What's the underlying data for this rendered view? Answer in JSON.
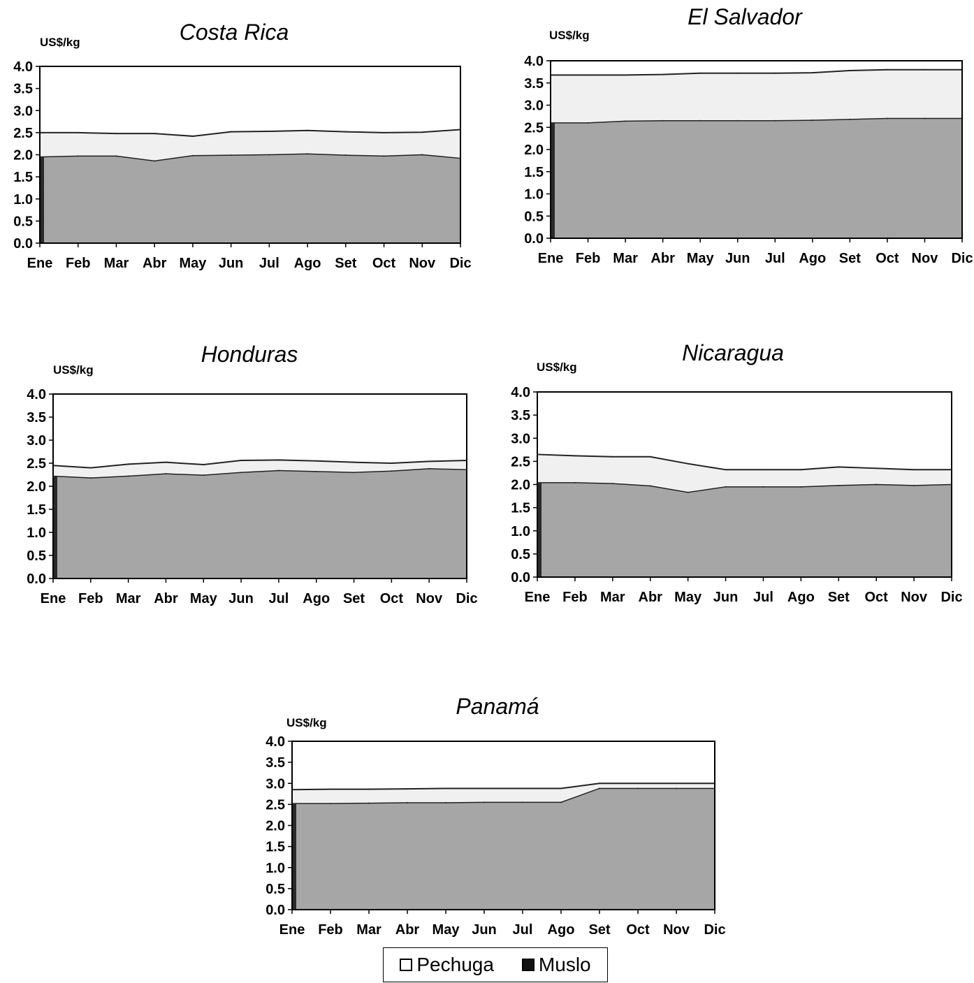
{
  "chart_data": [
    {
      "type": "area",
      "title": "Costa Rica",
      "ylabel": "US$/kg",
      "categories": [
        "Ene",
        "Feb",
        "Mar",
        "Abr",
        "May",
        "Jun",
        "Jul",
        "Ago",
        "Set",
        "Oct",
        "Nov",
        "Dic"
      ],
      "yticks": [
        "0.0",
        "0.5",
        "1.0",
        "1.5",
        "2.0",
        "2.5",
        "3.0",
        "3.5",
        "4.0"
      ],
      "ylim": [
        0,
        4
      ],
      "series": [
        {
          "name": "Pechuga",
          "values": [
            2.5,
            2.5,
            2.48,
            2.48,
            2.42,
            2.52,
            2.53,
            2.55,
            2.52,
            2.5,
            2.51,
            2.57
          ]
        },
        {
          "name": "Muslo",
          "values": [
            1.95,
            1.97,
            1.97,
            1.86,
            1.98,
            1.99,
            2.0,
            2.02,
            1.99,
            1.97,
            2.0,
            1.92
          ]
        }
      ]
    },
    {
      "type": "area",
      "title": "El Salvador",
      "ylabel": "US$/kg",
      "categories": [
        "Ene",
        "Feb",
        "Mar",
        "Abr",
        "May",
        "Jun",
        "Jul",
        "Ago",
        "Set",
        "Oct",
        "Nov",
        "Dic"
      ],
      "yticks": [
        "0.0",
        "0.5",
        "1.0",
        "1.5",
        "2.0",
        "2.5",
        "3.0",
        "3.5",
        "4.0"
      ],
      "ylim": [
        0,
        4
      ],
      "series": [
        {
          "name": "Pechuga",
          "values": [
            3.68,
            3.68,
            3.68,
            3.69,
            3.72,
            3.72,
            3.72,
            3.73,
            3.78,
            3.8,
            3.8,
            3.8
          ]
        },
        {
          "name": "Muslo",
          "values": [
            2.6,
            2.6,
            2.64,
            2.65,
            2.65,
            2.65,
            2.65,
            2.66,
            2.68,
            2.7,
            2.7,
            2.7
          ]
        }
      ]
    },
    {
      "type": "area",
      "title": "Honduras",
      "ylabel": "US$/kg",
      "categories": [
        "Ene",
        "Feb",
        "Mar",
        "Abr",
        "May",
        "Jun",
        "Jul",
        "Ago",
        "Set",
        "Oct",
        "Nov",
        "Dic"
      ],
      "yticks": [
        "0.0",
        "0.5",
        "1.0",
        "1.5",
        "2.0",
        "2.5",
        "3.0",
        "3.5",
        "4.0"
      ],
      "ylim": [
        0,
        4
      ],
      "series": [
        {
          "name": "Pechuga",
          "values": [
            2.45,
            2.4,
            2.48,
            2.52,
            2.47,
            2.56,
            2.57,
            2.55,
            2.52,
            2.5,
            2.54,
            2.56
          ]
        },
        {
          "name": "Muslo",
          "values": [
            2.22,
            2.18,
            2.22,
            2.27,
            2.24,
            2.3,
            2.34,
            2.32,
            2.3,
            2.33,
            2.38,
            2.36
          ]
        }
      ]
    },
    {
      "type": "area",
      "title": "Nicaragua",
      "ylabel": "US$/kg",
      "categories": [
        "Ene",
        "Feb",
        "Mar",
        "Abr",
        "May",
        "Jun",
        "Jul",
        "Ago",
        "Set",
        "Oct",
        "Nov",
        "Dic"
      ],
      "yticks": [
        "0.0",
        "0.5",
        "1.0",
        "1.5",
        "2.0",
        "2.5",
        "3.0",
        "3.5",
        "4.0"
      ],
      "ylim": [
        0,
        4
      ],
      "series": [
        {
          "name": "Pechuga",
          "values": [
            2.65,
            2.62,
            2.6,
            2.6,
            2.45,
            2.32,
            2.32,
            2.32,
            2.38,
            2.35,
            2.32,
            2.32
          ]
        },
        {
          "name": "Muslo",
          "values": [
            2.04,
            2.04,
            2.02,
            1.97,
            1.83,
            1.95,
            1.95,
            1.95,
            1.98,
            2.0,
            1.98,
            2.0
          ]
        }
      ]
    },
    {
      "type": "area",
      "title": "Panamá",
      "ylabel": "US$/kg",
      "categories": [
        "Ene",
        "Feb",
        "Mar",
        "Abr",
        "May",
        "Jun",
        "Jul",
        "Ago",
        "Set",
        "Oct",
        "Nov",
        "Dic"
      ],
      "yticks": [
        "0.0",
        "0.5",
        "1.0",
        "1.5",
        "2.0",
        "2.5",
        "3.0",
        "3.5",
        "4.0"
      ],
      "ylim": [
        0,
        4
      ],
      "series": [
        {
          "name": "Pechuga",
          "values": [
            2.85,
            2.86,
            2.86,
            2.87,
            2.88,
            2.88,
            2.88,
            2.88,
            3.0,
            3.0,
            3.0,
            3.0
          ]
        },
        {
          "name": "Muslo",
          "values": [
            2.52,
            2.52,
            2.53,
            2.54,
            2.54,
            2.55,
            2.55,
            2.55,
            2.88,
            2.88,
            2.88,
            2.88
          ]
        }
      ]
    }
  ],
  "legend": {
    "items": [
      {
        "label": "Pechuga",
        "color": "#ffffff"
      },
      {
        "label": "Muslo",
        "color": "#111111"
      }
    ]
  },
  "colors": {
    "pechuga_fill": "#f0f0f0",
    "muslo_fill": "#a6a6a6",
    "line": "#222222"
  }
}
